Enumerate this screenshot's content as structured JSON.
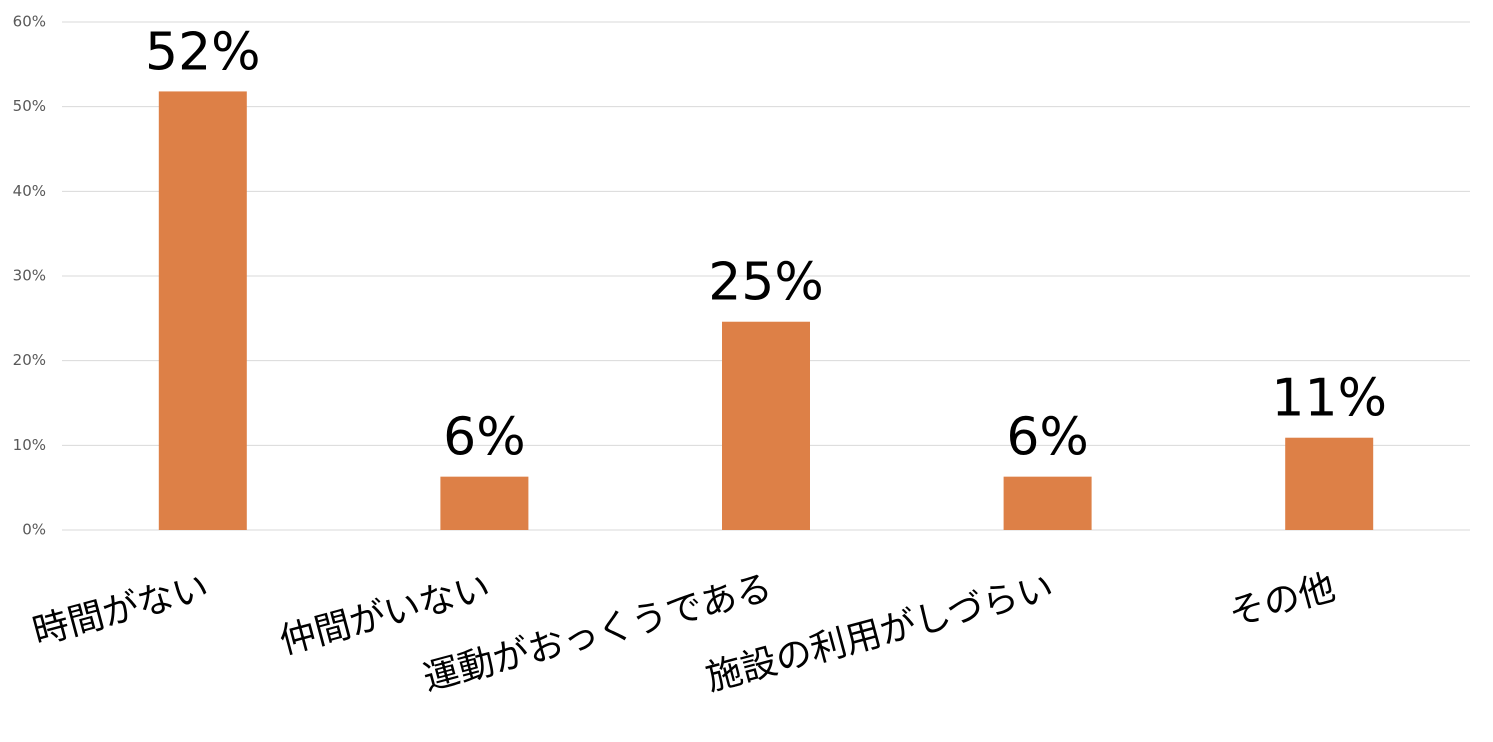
{
  "chart_data": {
    "type": "bar",
    "categories": [
      "時間がない",
      "仲間がいない",
      "運動がおっくうである",
      "施設の利用がしづらい",
      "その他"
    ],
    "values": [
      51.8,
      6.3,
      24.6,
      6.3,
      10.9
    ],
    "value_labels": [
      "52%",
      "6%",
      "25%",
      "6%",
      "11%"
    ],
    "color": "#dd8047",
    "ylim": [
      0,
      60
    ],
    "yticks": [
      {
        "value": 0,
        "label": "0%"
      },
      {
        "value": 10,
        "label": "10%"
      },
      {
        "value": 20,
        "label": "20%"
      },
      {
        "value": 30,
        "label": "30%"
      },
      {
        "value": 40,
        "label": "40%"
      },
      {
        "value": 50,
        "label": "50%"
      },
      {
        "value": 60,
        "label": "60%"
      }
    ],
    "grid": true
  }
}
